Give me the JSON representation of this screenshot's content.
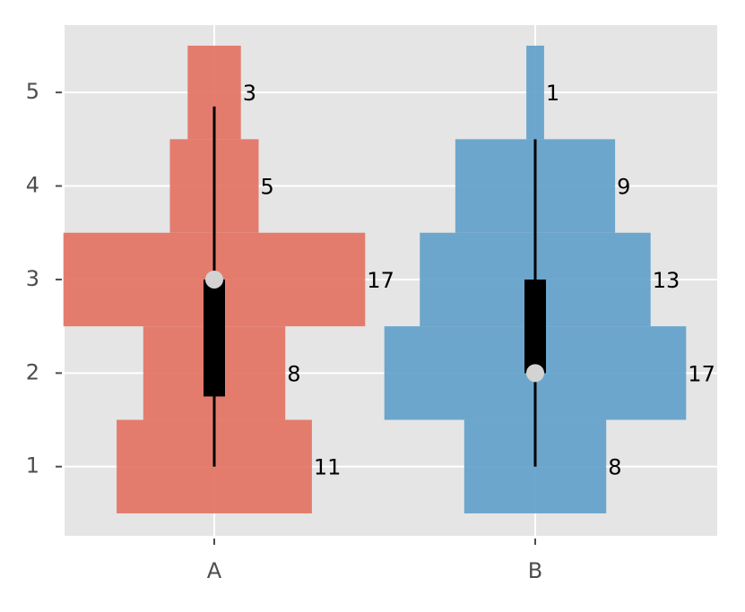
{
  "chart_data": {
    "type": "violin",
    "categories": [
      "A",
      "B"
    ],
    "levels": [
      1,
      2,
      3,
      4,
      5
    ],
    "counts": [
      [
        11,
        8,
        17,
        5,
        3
      ],
      [
        8,
        17,
        13,
        9,
        1
      ]
    ],
    "colors": [
      "#e3705f",
      "#5e9fc9"
    ],
    "boxes": [
      {
        "whisker_low": 1,
        "q1": 1.75,
        "median": 3,
        "q3": 3,
        "whisker_high": 4.85
      },
      {
        "whisker_low": 1,
        "q1": 2,
        "median": 2,
        "q3": 3,
        "whisker_high": 4.5
      }
    ],
    "ylim": [
      0.26,
      5.72
    ],
    "yticks": [
      1,
      2,
      3,
      4,
      5
    ],
    "grid": true
  }
}
